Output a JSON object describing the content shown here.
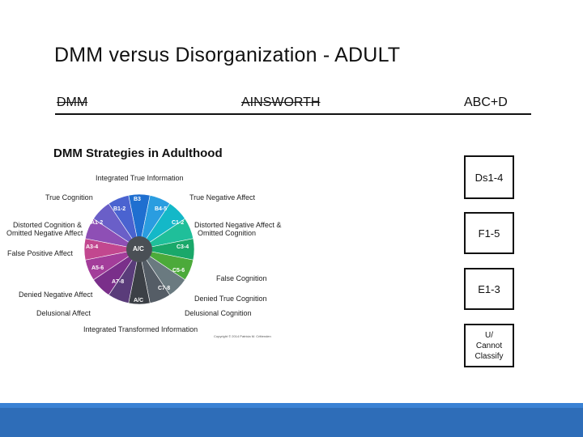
{
  "slide": {
    "title": "DMM versus Disorganization - ADULT"
  },
  "columns": {
    "dmm": "DMM",
    "ainsworth": "AINSWORTH",
    "abcd": "ABC+D"
  },
  "wheel": {
    "title": "DMM Strategies in Adulthood",
    "labels": {
      "integrated_true": "Integrated True Information",
      "true_cognition": "True Cognition",
      "true_negative_affect": "True Negative Affect",
      "distorted_cognition": "Distorted Cognition &",
      "omitted_negative_affect": "Omitted Negative Affect",
      "distorted_negative_affect": "Distorted Negative Affect &",
      "omitted_cognition": "Omitted Cognition",
      "false_positive_affect": "False Positive Affect",
      "false_cognition": "False Cognition",
      "denied_negative_affect": "Denied Negative Affect",
      "denied_true_cognition": "Denied True Cognition",
      "delusional_affect": "Delusional Affect",
      "delusional_cognition": "Delusional Cognition",
      "integrated_transformed": "Integrated Transformed Information",
      "copyright": "Copyright © 2014 Patricia M. Crittenden"
    },
    "segments": {
      "b3": "B3",
      "b12": "B1-2",
      "b45": "B4-5",
      "a12": "A1-2",
      "c12": "C1-2",
      "a34": "A3-4",
      "c34": "C3-4",
      "center": "A/C",
      "a56": "A5-6",
      "c56": "C5-6",
      "a78": "A7-8",
      "c78": "C7-8",
      "ac": "A/C"
    },
    "colors": [
      "#1f6fd0",
      "#2a9de0",
      "#14b8c8",
      "#1fbf9a",
      "#1aa86a",
      "#4caa3a",
      "#6a7a80",
      "#555d66",
      "#3c4046",
      "#5a3c7a",
      "#7a2f8a",
      "#a33d9a",
      "#c2478f",
      "#8e4fb5",
      "#6a5fc8",
      "#4a63d0"
    ]
  },
  "categories": {
    "ds": "Ds1-4",
    "f": "F1-5",
    "e": "E1-3",
    "u_line1": "U/",
    "u_line2": "Cannot",
    "u_line3": "Classify"
  }
}
